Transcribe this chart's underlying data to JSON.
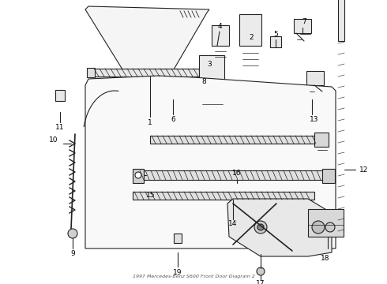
{
  "title": "1997 Mercedes-Benz S600 Front Door Diagram 2",
  "bg_color": "#ffffff",
  "lc": "#222222",
  "figsize": [
    4.9,
    3.6
  ],
  "dpi": 100,
  "xlim": [
    0,
    490
  ],
  "ylim": [
    0,
    360
  ]
}
